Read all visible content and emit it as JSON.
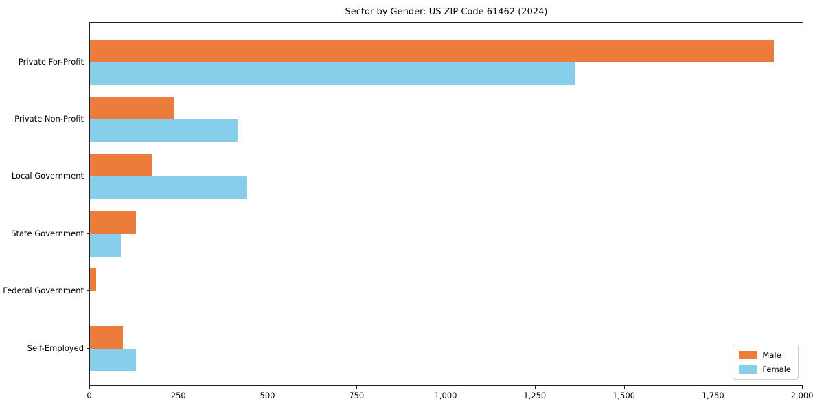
{
  "chart_data": {
    "type": "bar",
    "orientation": "horizontal",
    "title": "Sector by Gender: US ZIP Code 61462 (2024)",
    "categories": [
      "Private For-Profit",
      "Private Non-Profit",
      "Local Government",
      "State Government",
      "Federal Government",
      "Self-Employed"
    ],
    "series": [
      {
        "name": "Male",
        "color": "#eb7c3c",
        "values": [
          1920,
          235,
          175,
          130,
          18,
          92
        ]
      },
      {
        "name": "Female",
        "color": "#87ceeb",
        "values": [
          1360,
          415,
          440,
          87,
          0,
          130
        ]
      }
    ],
    "xlabel": "",
    "ylabel": "",
    "xlim": [
      0,
      2000
    ],
    "x_tick_values": [
      0,
      250,
      500,
      750,
      1000,
      1250,
      1500,
      1750,
      2000
    ],
    "x_tick_labels": [
      "0",
      "250",
      "500",
      "750",
      "1,000",
      "1,250",
      "1,500",
      "1,750",
      "2,000"
    ],
    "grid": false,
    "legend": {
      "position": "lower right",
      "entries": [
        "Male",
        "Female"
      ]
    }
  }
}
